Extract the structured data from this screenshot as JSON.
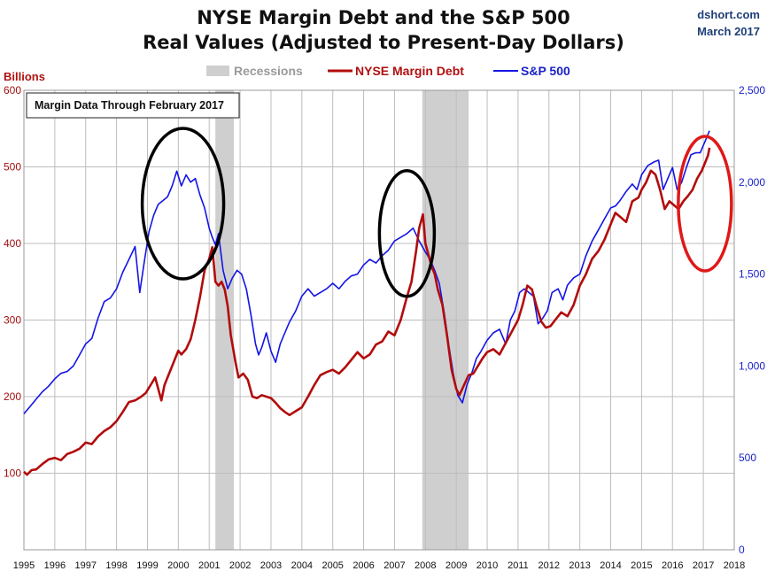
{
  "header": {
    "title_line1": "NYSE Margin Debt and the S&P 500",
    "title_line2": "Real Values (Adjusted to Present-Day Dollars)",
    "brand_line1": "dshort.com",
    "brand_line2": "March 2017"
  },
  "note": "Margin Data Through February 2017",
  "colors": {
    "margin": "#b20c0c",
    "sp500": "#1414e6",
    "recession": "#cfcfcf",
    "grid": "#bdbdbd",
    "ellipse_black": "#000000",
    "ellipse_red": "#e01818"
  },
  "chart_data": {
    "type": "line",
    "title": "NYSE Margin Debt and the S&P 500 Real Values (Adjusted to Present-Day Dollars)",
    "xlabel": "",
    "ylabel_left": "Billions",
    "x_ticks": [
      "1995",
      "1996",
      "1997",
      "1998",
      "1999",
      "2000",
      "2001",
      "2002",
      "2003",
      "2004",
      "2005",
      "2006",
      "2007",
      "2008",
      "2009",
      "2010",
      "2011",
      "2012",
      "2013",
      "2014",
      "2015",
      "2016",
      "2017",
      "2018"
    ],
    "xlim": [
      1995,
      2018
    ],
    "ylim_left": [
      0,
      600
    ],
    "ylim_right": [
      0,
      2500
    ],
    "y_ticks_left": [
      100,
      200,
      300,
      400,
      500,
      600
    ],
    "y_ticks_right": [
      "0",
      "500",
      "1,000",
      "1,500",
      "2,000",
      "2,500"
    ],
    "grid": true,
    "legend_position": "top-center",
    "recessions": [
      {
        "label": "Recessions",
        "start": 2001.2,
        "end": 2001.8
      },
      {
        "start": 2007.9,
        "end": 2009.4
      }
    ],
    "series": [
      {
        "name": "NYSE Margin Debt",
        "axis": "left",
        "points": [
          [
            1995.0,
            102
          ],
          [
            1995.1,
            98
          ],
          [
            1995.25,
            104
          ],
          [
            1995.4,
            105
          ],
          [
            1995.6,
            112
          ],
          [
            1995.8,
            118
          ],
          [
            1996.0,
            120
          ],
          [
            1996.2,
            117
          ],
          [
            1996.4,
            125
          ],
          [
            1996.6,
            128
          ],
          [
            1996.8,
            132
          ],
          [
            1997.0,
            140
          ],
          [
            1997.2,
            138
          ],
          [
            1997.4,
            148
          ],
          [
            1997.6,
            155
          ],
          [
            1997.8,
            160
          ],
          [
            1998.0,
            168
          ],
          [
            1998.2,
            180
          ],
          [
            1998.4,
            193
          ],
          [
            1998.6,
            195
          ],
          [
            1998.8,
            200
          ],
          [
            1998.95,
            205
          ],
          [
            1999.1,
            215
          ],
          [
            1999.25,
            225
          ],
          [
            1999.35,
            210
          ],
          [
            1999.45,
            195
          ],
          [
            1999.55,
            215
          ],
          [
            1999.7,
            230
          ],
          [
            1999.85,
            245
          ],
          [
            2000.0,
            260
          ],
          [
            2000.1,
            255
          ],
          [
            2000.25,
            262
          ],
          [
            2000.4,
            275
          ],
          [
            2000.55,
            300
          ],
          [
            2000.7,
            330
          ],
          [
            2000.85,
            365
          ],
          [
            2001.0,
            380
          ],
          [
            2001.1,
            395
          ],
          [
            2001.2,
            350
          ],
          [
            2001.3,
            345
          ],
          [
            2001.4,
            350
          ],
          [
            2001.5,
            340
          ],
          [
            2001.6,
            318
          ],
          [
            2001.7,
            280
          ],
          [
            2001.85,
            245
          ],
          [
            2001.95,
            225
          ],
          [
            2002.1,
            230
          ],
          [
            2002.25,
            222
          ],
          [
            2002.4,
            200
          ],
          [
            2002.55,
            198
          ],
          [
            2002.7,
            202
          ],
          [
            2002.85,
            200
          ],
          [
            2003.0,
            198
          ],
          [
            2003.15,
            192
          ],
          [
            2003.3,
            185
          ],
          [
            2003.45,
            180
          ],
          [
            2003.6,
            176
          ],
          [
            2003.8,
            181
          ],
          [
            2004.0,
            186
          ],
          [
            2004.2,
            200
          ],
          [
            2004.4,
            215
          ],
          [
            2004.6,
            228
          ],
          [
            2004.8,
            232
          ],
          [
            2005.0,
            235
          ],
          [
            2005.2,
            230
          ],
          [
            2005.4,
            238
          ],
          [
            2005.6,
            248
          ],
          [
            2005.8,
            258
          ],
          [
            2006.0,
            250
          ],
          [
            2006.2,
            255
          ],
          [
            2006.4,
            268
          ],
          [
            2006.6,
            272
          ],
          [
            2006.8,
            285
          ],
          [
            2007.0,
            280
          ],
          [
            2007.2,
            300
          ],
          [
            2007.4,
            330
          ],
          [
            2007.55,
            350
          ],
          [
            2007.7,
            390
          ],
          [
            2007.8,
            420
          ],
          [
            2007.92,
            438
          ],
          [
            2008.0,
            400
          ],
          [
            2008.1,
            385
          ],
          [
            2008.2,
            370
          ],
          [
            2008.3,
            360
          ],
          [
            2008.4,
            340
          ],
          [
            2008.55,
            320
          ],
          [
            2008.7,
            280
          ],
          [
            2008.85,
            235
          ],
          [
            2009.0,
            210
          ],
          [
            2009.1,
            202
          ],
          [
            2009.25,
            215
          ],
          [
            2009.4,
            228
          ],
          [
            2009.55,
            230
          ],
          [
            2009.7,
            240
          ],
          [
            2009.85,
            250
          ],
          [
            2010.0,
            258
          ],
          [
            2010.2,
            262
          ],
          [
            2010.4,
            255
          ],
          [
            2010.6,
            270
          ],
          [
            2010.8,
            285
          ],
          [
            2011.0,
            300
          ],
          [
            2011.15,
            320
          ],
          [
            2011.3,
            345
          ],
          [
            2011.45,
            340
          ],
          [
            2011.6,
            318
          ],
          [
            2011.75,
            298
          ],
          [
            2011.9,
            290
          ],
          [
            2012.05,
            292
          ],
          [
            2012.2,
            300
          ],
          [
            2012.4,
            310
          ],
          [
            2012.6,
            305
          ],
          [
            2012.8,
            320
          ],
          [
            2013.0,
            345
          ],
          [
            2013.2,
            360
          ],
          [
            2013.4,
            380
          ],
          [
            2013.6,
            390
          ],
          [
            2013.8,
            405
          ],
          [
            2014.0,
            425
          ],
          [
            2014.15,
            440
          ],
          [
            2014.3,
            435
          ],
          [
            2014.5,
            428
          ],
          [
            2014.7,
            455
          ],
          [
            2014.9,
            460
          ],
          [
            2015.0,
            470
          ],
          [
            2015.15,
            480
          ],
          [
            2015.3,
            495
          ],
          [
            2015.45,
            490
          ],
          [
            2015.6,
            470
          ],
          [
            2015.75,
            445
          ],
          [
            2015.9,
            455
          ],
          [
            2016.05,
            450
          ],
          [
            2016.2,
            445
          ],
          [
            2016.35,
            455
          ],
          [
            2016.5,
            462
          ],
          [
            2016.65,
            470
          ],
          [
            2016.8,
            485
          ],
          [
            2016.95,
            495
          ],
          [
            2017.05,
            505
          ],
          [
            2017.15,
            515
          ],
          [
            2017.2,
            525
          ]
        ]
      },
      {
        "name": "S&P 500",
        "axis": "right",
        "points": [
          [
            1995.0,
            740
          ],
          [
            1995.2,
            780
          ],
          [
            1995.4,
            820
          ],
          [
            1995.6,
            860
          ],
          [
            1995.8,
            890
          ],
          [
            1996.0,
            930
          ],
          [
            1996.2,
            960
          ],
          [
            1996.4,
            970
          ],
          [
            1996.6,
            1000
          ],
          [
            1996.8,
            1060
          ],
          [
            1997.0,
            1120
          ],
          [
            1997.2,
            1150
          ],
          [
            1997.4,
            1260
          ],
          [
            1997.6,
            1350
          ],
          [
            1997.8,
            1370
          ],
          [
            1998.0,
            1420
          ],
          [
            1998.2,
            1510
          ],
          [
            1998.4,
            1580
          ],
          [
            1998.6,
            1650
          ],
          [
            1998.75,
            1400
          ],
          [
            1998.9,
            1570
          ],
          [
            1999.05,
            1730
          ],
          [
            1999.2,
            1820
          ],
          [
            1999.35,
            1880
          ],
          [
            1999.5,
            1900
          ],
          [
            1999.65,
            1920
          ],
          [
            1999.8,
            1980
          ],
          [
            1999.95,
            2060
          ],
          [
            2000.1,
            1980
          ],
          [
            2000.25,
            2040
          ],
          [
            2000.4,
            2000
          ],
          [
            2000.55,
            2020
          ],
          [
            2000.7,
            1930
          ],
          [
            2000.85,
            1860
          ],
          [
            2001.0,
            1750
          ],
          [
            2001.1,
            1700
          ],
          [
            2001.2,
            1660
          ],
          [
            2001.3,
            1720
          ],
          [
            2001.45,
            1520
          ],
          [
            2001.6,
            1420
          ],
          [
            2001.75,
            1480
          ],
          [
            2001.9,
            1520
          ],
          [
            2002.05,
            1500
          ],
          [
            2002.2,
            1420
          ],
          [
            2002.35,
            1280
          ],
          [
            2002.5,
            1120
          ],
          [
            2002.6,
            1060
          ],
          [
            2002.7,
            1100
          ],
          [
            2002.85,
            1180
          ],
          [
            2003.0,
            1080
          ],
          [
            2003.15,
            1020
          ],
          [
            2003.3,
            1120
          ],
          [
            2003.45,
            1180
          ],
          [
            2003.6,
            1240
          ],
          [
            2003.8,
            1300
          ],
          [
            2004.0,
            1380
          ],
          [
            2004.2,
            1420
          ],
          [
            2004.4,
            1380
          ],
          [
            2004.6,
            1400
          ],
          [
            2004.8,
            1420
          ],
          [
            2005.0,
            1450
          ],
          [
            2005.2,
            1420
          ],
          [
            2005.4,
            1460
          ],
          [
            2005.6,
            1490
          ],
          [
            2005.8,
            1500
          ],
          [
            2006.0,
            1550
          ],
          [
            2006.2,
            1580
          ],
          [
            2006.4,
            1560
          ],
          [
            2006.6,
            1600
          ],
          [
            2006.8,
            1630
          ],
          [
            2007.0,
            1680
          ],
          [
            2007.2,
            1700
          ],
          [
            2007.4,
            1720
          ],
          [
            2007.6,
            1750
          ],
          [
            2007.8,
            1680
          ],
          [
            2008.0,
            1620
          ],
          [
            2008.15,
            1580
          ],
          [
            2008.3,
            1520
          ],
          [
            2008.45,
            1450
          ],
          [
            2008.6,
            1300
          ],
          [
            2008.75,
            1120
          ],
          [
            2008.9,
            960
          ],
          [
            2009.05,
            840
          ],
          [
            2009.2,
            800
          ],
          [
            2009.35,
            900
          ],
          [
            2009.5,
            960
          ],
          [
            2009.65,
            1040
          ],
          [
            2009.8,
            1080
          ],
          [
            2010.0,
            1140
          ],
          [
            2010.2,
            1180
          ],
          [
            2010.4,
            1200
          ],
          [
            2010.6,
            1120
          ],
          [
            2010.75,
            1250
          ],
          [
            2010.9,
            1300
          ],
          [
            2011.05,
            1400
          ],
          [
            2011.2,
            1420
          ],
          [
            2011.35,
            1400
          ],
          [
            2011.5,
            1380
          ],
          [
            2011.65,
            1230
          ],
          [
            2011.8,
            1260
          ],
          [
            2011.95,
            1300
          ],
          [
            2012.1,
            1400
          ],
          [
            2012.3,
            1420
          ],
          [
            2012.45,
            1360
          ],
          [
            2012.6,
            1440
          ],
          [
            2012.8,
            1480
          ],
          [
            2013.0,
            1500
          ],
          [
            2013.2,
            1600
          ],
          [
            2013.4,
            1680
          ],
          [
            2013.6,
            1740
          ],
          [
            2013.8,
            1800
          ],
          [
            2014.0,
            1860
          ],
          [
            2014.15,
            1870
          ],
          [
            2014.3,
            1900
          ],
          [
            2014.5,
            1950
          ],
          [
            2014.7,
            1990
          ],
          [
            2014.85,
            1960
          ],
          [
            2015.0,
            2040
          ],
          [
            2015.2,
            2090
          ],
          [
            2015.4,
            2110
          ],
          [
            2015.55,
            2120
          ],
          [
            2015.7,
            1960
          ],
          [
            2015.85,
            2020
          ],
          [
            2016.0,
            2080
          ],
          [
            2016.15,
            1960
          ],
          [
            2016.3,
            2000
          ],
          [
            2016.45,
            2080
          ],
          [
            2016.6,
            2150
          ],
          [
            2016.75,
            2160
          ],
          [
            2016.9,
            2160
          ],
          [
            2017.0,
            2200
          ],
          [
            2017.1,
            2240
          ],
          [
            2017.2,
            2280
          ]
        ]
      }
    ],
    "annotations": [
      {
        "text": "Margin Data Through February 2017"
      }
    ],
    "highlight_ellipses": [
      {
        "color": "black",
        "center": [
          2000.15,
          452
        ]
      },
      {
        "color": "black",
        "center": [
          2007.4,
          413
        ]
      },
      {
        "color": "red",
        "center": [
          2017.05,
          452
        ]
      }
    ]
  }
}
